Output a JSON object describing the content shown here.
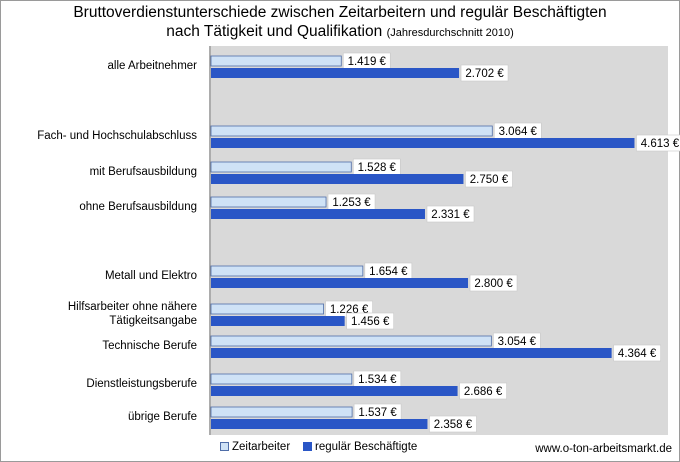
{
  "title": {
    "line1": "Bruttoverdienstunterschiede zwischen Zeitarbeitern und regulär Beschäftigten",
    "line2": "nach Tätigkeit und Qualifikation",
    "note": "(Jahresdurchschnitt 2010)"
  },
  "source": "www.o-ton-arbeitsmarkt.de",
  "colors": {
    "plot_bg": "#d9d9d9",
    "zeitarbeiter": "#cfe2f6",
    "zeitarbeiter_border": "#4f6da8",
    "regulaer": "#2a56c6"
  },
  "chart_data": {
    "type": "bar",
    "orientation": "horizontal",
    "categories": [
      "alle Arbeitnehmer",
      "Fach- und Hochschulabschluss",
      "mit Berufsausbildung",
      "ohne Berufsausbildung",
      "Metall und Elektro",
      "Hilfsarbeiter ohne nähere Tätigkeitsangabe",
      "Technische Berufe",
      "Dienstleistungsberufe",
      "übrige Berufe"
    ],
    "category_display": [
      [
        "alle Arbeitnehmer"
      ],
      [
        "Fach- und Hochschulabschluss"
      ],
      [
        "mit Berufsausbildung"
      ],
      [
        "ohne Berufsausbildung"
      ],
      [
        "Metall und Elektro"
      ],
      [
        "Hilfsarbeiter ohne nähere",
        "Tätigkeitsangabe"
      ],
      [
        "Technische Berufe"
      ],
      [
        "Dienstleistungsberufe"
      ],
      [
        "übrige Berufe"
      ]
    ],
    "series": [
      {
        "name": "Zeitarbeiter",
        "values": [
          1419,
          3064,
          1528,
          1253,
          1654,
          1226,
          3054,
          1534,
          1537
        ],
        "labels": [
          "1.419 €",
          "3.064 €",
          "1.528 €",
          "1.253 €",
          "1.654 €",
          "1.226 €",
          "3.054 €",
          "1.534 €",
          "1.537 €"
        ]
      },
      {
        "name": "regulär Beschäftigte",
        "values": [
          2702,
          4613,
          2750,
          2331,
          2800,
          1456,
          4364,
          2686,
          2358
        ],
        "labels": [
          "2.702 €",
          "4.613 €",
          "2.750 €",
          "2.331 €",
          "2.800 €",
          "1.456 €",
          "4.364 €",
          "2.686 €",
          "2.358 €"
        ]
      }
    ],
    "xlim": [
      0,
      5000
    ],
    "grid": false,
    "legend_position": "bottom-left"
  }
}
